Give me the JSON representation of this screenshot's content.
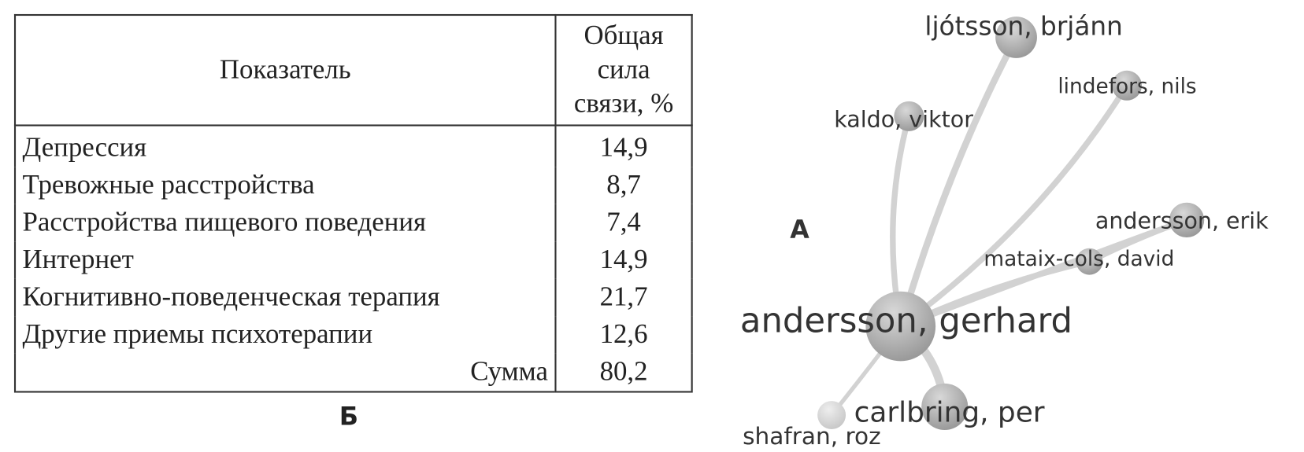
{
  "panel_b": {
    "label": "Б",
    "table": {
      "headers": [
        "Показатель",
        [
          "Общая",
          "сила",
          "связи, %"
        ]
      ],
      "rows": [
        {
          "indicator": "Депрессия",
          "value": "14,9"
        },
        {
          "indicator": "Тревожные расстройства",
          "value": "8,7"
        },
        {
          "indicator": "Расстройства пищевого поведения",
          "value": "7,4"
        },
        {
          "indicator": "Интернет",
          "value": "14,9"
        },
        {
          "indicator": "Когнитивно-поведенческая терапия",
          "value": "21,7"
        },
        {
          "indicator": "Другие приемы психотерапии",
          "value": "12,6"
        }
      ],
      "total": {
        "label": "Сумма",
        "value": "80,2"
      }
    }
  },
  "panel_a": {
    "label": "A",
    "center_node": "andersson, gerhard",
    "nodes": [
      "ljótsson, brjánn",
      "kaldo, viktor",
      "lindefors, nils",
      "andersson, erik",
      "mataix-cols, david",
      "carlbring, per",
      "shafran, roz"
    ],
    "edge_color": "#d2d2d2",
    "node_color": "#a8a8a8"
  }
}
